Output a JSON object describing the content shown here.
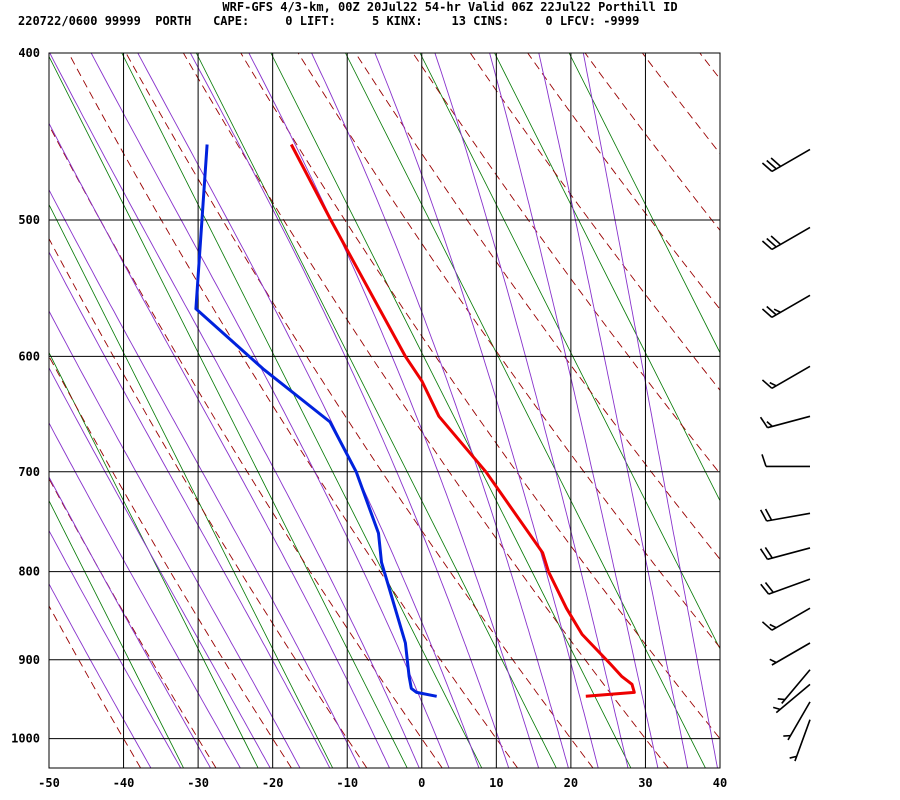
{
  "header": {
    "title": "WRF-GFS 4/3-km, 00Z 20Jul22 54-hr Valid 06Z 22Jul22 Porthill ID",
    "stats_line": "220722/0600 99999  PORTH   CAPE:     0 LIFT:     5 KINX:    13 CINS:     0 LFCV: -9999"
  },
  "chart_data": {
    "type": "skew-t",
    "x_axis": {
      "ticks": [
        -50,
        -40,
        -30,
        -20,
        -10,
        0,
        10,
        20,
        30,
        40
      ],
      "range": [
        -50,
        40
      ]
    },
    "y_axis": {
      "ticks": [
        400,
        500,
        600,
        700,
        800,
        900,
        1000
      ],
      "range": [
        400,
        1040
      ],
      "scale": "log"
    },
    "colors": {
      "temperature": "#ee0000",
      "dewpoint": "#0022dd",
      "dry_adiabat": "#990000",
      "moist_adiabat": "#8833cc",
      "mixing_ratio": "#007700",
      "grid": "#000000"
    },
    "temperature": [
      {
        "p": 945,
        "x": 22
      },
      {
        "p": 940,
        "x": 28.5
      },
      {
        "p": 930,
        "x": 28.2
      },
      {
        "p": 920,
        "x": 26.8
      },
      {
        "p": 905,
        "x": 25.3
      },
      {
        "p": 870,
        "x": 21.5
      },
      {
        "p": 840,
        "x": 19.4
      },
      {
        "p": 800,
        "x": 17.0
      },
      {
        "p": 780,
        "x": 16.2
      },
      {
        "p": 700,
        "x": 8.6
      },
      {
        "p": 650,
        "x": 2.3
      },
      {
        "p": 620,
        "x": 0
      },
      {
        "p": 600,
        "x": -2.2
      },
      {
        "p": 500,
        "x": -12.2
      },
      {
        "p": 452,
        "x": -17.5
      }
    ],
    "dewpoint": [
      {
        "p": 945,
        "x": 2
      },
      {
        "p": 940,
        "x": -0.7
      },
      {
        "p": 935,
        "x": -1.4
      },
      {
        "p": 920,
        "x": -1.7
      },
      {
        "p": 880,
        "x": -2.2
      },
      {
        "p": 790,
        "x": -5.4
      },
      {
        "p": 760,
        "x": -5.8
      },
      {
        "p": 700,
        "x": -8.8
      },
      {
        "p": 655,
        "x": -12.3
      },
      {
        "p": 610,
        "x": -21.3
      },
      {
        "p": 563,
        "x": -30.3
      },
      {
        "p": 452,
        "x": -28.8
      }
    ],
    "wind_barbs": [
      {
        "p": 455,
        "dir": 240,
        "speed": 30
      },
      {
        "p": 505,
        "dir": 240,
        "speed": 30
      },
      {
        "p": 553,
        "dir": 240,
        "speed": 25
      },
      {
        "p": 608,
        "dir": 240,
        "speed": 15
      },
      {
        "p": 650,
        "dir": 255,
        "speed": 15
      },
      {
        "p": 695,
        "dir": 270,
        "speed": 10
      },
      {
        "p": 740,
        "dir": 260,
        "speed": 20
      },
      {
        "p": 775,
        "dir": 255,
        "speed": 20
      },
      {
        "p": 808,
        "dir": 250,
        "speed": 20
      },
      {
        "p": 840,
        "dir": 240,
        "speed": 15
      },
      {
        "p": 880,
        "dir": 240,
        "speed": 5
      },
      {
        "p": 912,
        "dir": 220,
        "speed": 5
      },
      {
        "p": 930,
        "dir": 230,
        "speed": 5
      },
      {
        "p": 952,
        "dir": 210,
        "speed": 5
      },
      {
        "p": 975,
        "dir": 200,
        "speed": 5
      }
    ]
  }
}
